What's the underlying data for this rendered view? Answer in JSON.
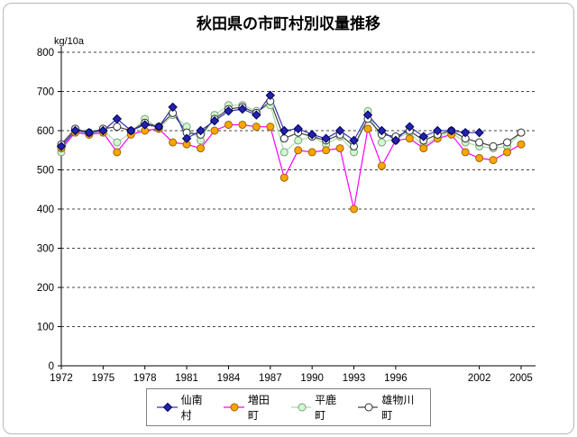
{
  "title": "秋田県の市町村別収量推移",
  "y_axis_unit": "kg/10a",
  "chart_data": {
    "type": "line",
    "x": [
      1972,
      1973,
      1974,
      1975,
      1976,
      1977,
      1978,
      1979,
      1980,
      1981,
      1982,
      1983,
      1984,
      1985,
      1986,
      1987,
      1988,
      1989,
      1990,
      1991,
      1992,
      1993,
      1994,
      1995,
      1996,
      1997,
      1998,
      1999,
      2000,
      2001,
      2002,
      2003,
      2004,
      2005
    ],
    "x_tick_years": [
      1972,
      1975,
      1978,
      1981,
      1984,
      1987,
      1990,
      1993,
      1996,
      2002,
      2005
    ],
    "x_tick_labels": [
      "1972",
      "1975",
      "1978",
      "1981",
      "1984",
      "1987",
      "1990",
      "1993",
      "1996",
      "2002",
      "2005"
    ],
    "ylim": [
      0,
      800
    ],
    "y_ticks": [
      0,
      100,
      200,
      300,
      400,
      500,
      600,
      700,
      800
    ],
    "grid": "dashed-horizontal",
    "legend_position": "bottom",
    "series": [
      {
        "name": "仙南村",
        "marker": "diamond",
        "line_color": "#3333bb",
        "marker_fill": "#2222aa",
        "marker_stroke": "#000060",
        "values": [
          560,
          600,
          595,
          600,
          630,
          600,
          615,
          610,
          660,
          580,
          600,
          625,
          650,
          655,
          640,
          690,
          600,
          605,
          590,
          580,
          600,
          575,
          640,
          600,
          575,
          610,
          585,
          600,
          600,
          595,
          595,
          null,
          null,
          null
        ]
      },
      {
        "name": "増田町",
        "marker": "circle",
        "line_color": "#ff00ff",
        "marker_fill": "#ffa500",
        "marker_stroke": "#996600",
        "values": [
          555,
          595,
          590,
          595,
          545,
          590,
          600,
          605,
          570,
          565,
          555,
          600,
          615,
          615,
          610,
          610,
          480,
          550,
          545,
          550,
          555,
          400,
          605,
          510,
          575,
          580,
          555,
          580,
          590,
          545,
          530,
          525,
          545,
          565
        ]
      },
      {
        "name": "平鹿町",
        "marker": "circle",
        "line_color": "#a8dca8",
        "marker_fill": "#ccffcc",
        "marker_stroke": "#889988",
        "values": [
          545,
          600,
          590,
          600,
          570,
          595,
          630,
          605,
          640,
          610,
          575,
          640,
          665,
          665,
          650,
          665,
          545,
          575,
          585,
          565,
          585,
          545,
          650,
          570,
          580,
          595,
          560,
          585,
          595,
          570,
          560,
          555,
          560,
          595
        ]
      },
      {
        "name": "雄物川町",
        "marker": "circle",
        "line_color": "#404040",
        "marker_fill": "#ffffff",
        "marker_stroke": "#303030",
        "values": [
          565,
          605,
          595,
          605,
          610,
          600,
          620,
          610,
          645,
          595,
          590,
          630,
          655,
          660,
          645,
          675,
          580,
          595,
          585,
          575,
          590,
          560,
          630,
          590,
          585,
          600,
          575,
          590,
          600,
          580,
          570,
          560,
          570,
          595
        ]
      }
    ]
  }
}
